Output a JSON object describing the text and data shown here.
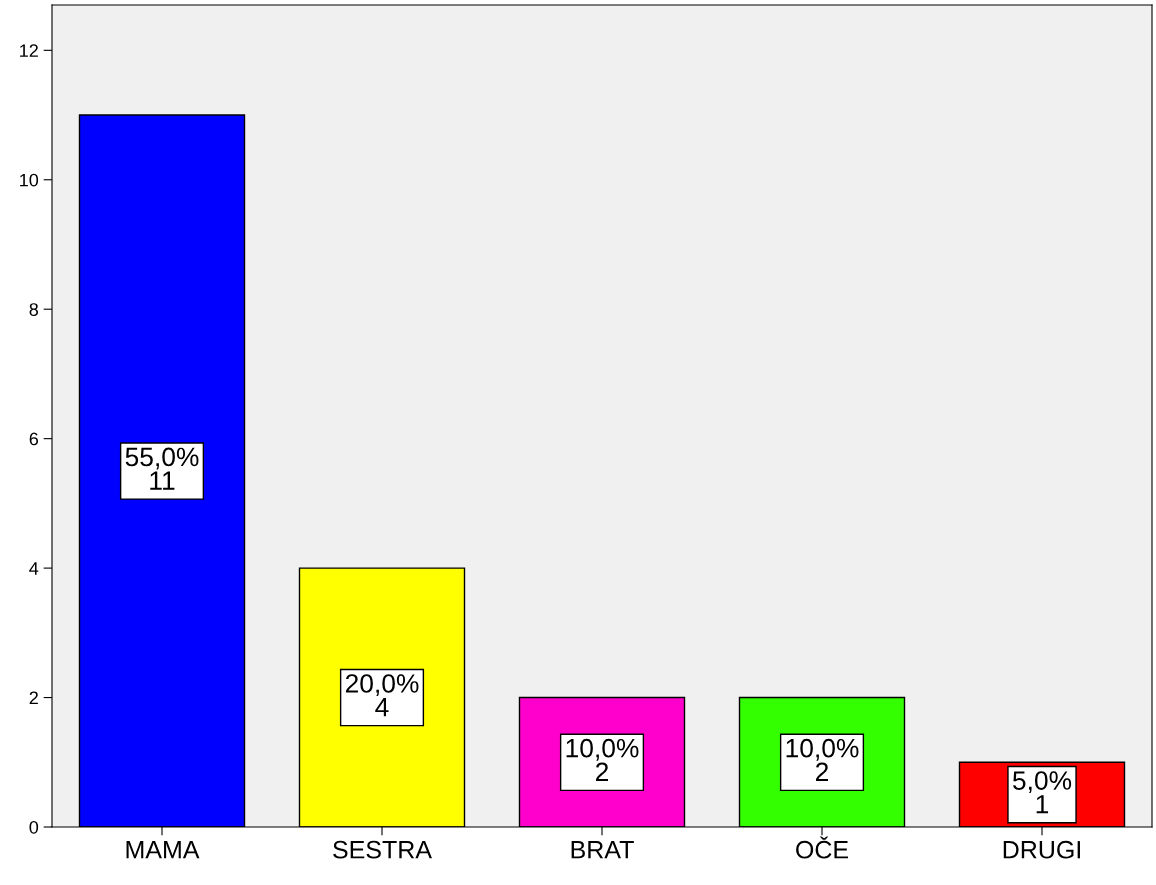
{
  "chart_data": {
    "type": "bar",
    "categories": [
      "MAMA",
      "SESTRA",
      "BRAT",
      "OČE",
      "DRUGI"
    ],
    "values": [
      11,
      4,
      2,
      2,
      1
    ],
    "colors": [
      "#0000ff",
      "#ffff00",
      "#ff00cc",
      "#33ff00",
      "#ff0000"
    ],
    "value_labels": [
      "55,0%\n11",
      "20,0%\n4",
      "10,0%\n2",
      "10,0%\n2",
      "5,0%\n1"
    ],
    "ylim": [
      0,
      12.7
    ],
    "yticks": [
      0,
      2,
      4,
      6,
      8,
      10,
      12
    ],
    "grid": false,
    "legend": false
  }
}
